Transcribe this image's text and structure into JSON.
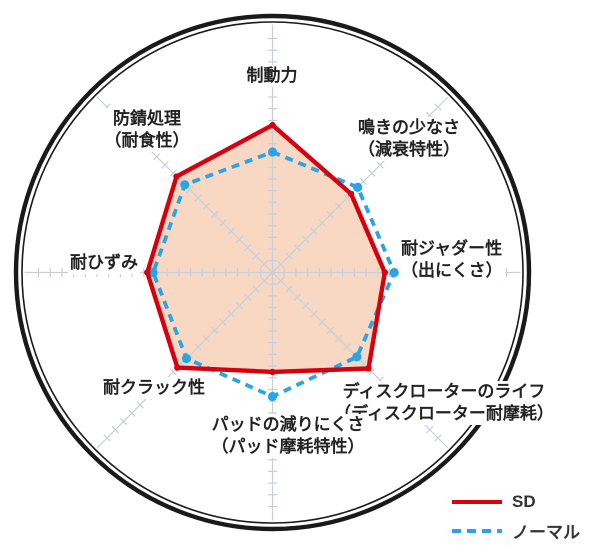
{
  "chart_data": {
    "type": "radar",
    "axes": [
      {
        "id": "braking",
        "label_lines": [
          "制動力"
        ]
      },
      {
        "id": "squeal",
        "label_lines": [
          "鳴きの少なさ",
          "（減衰特性）"
        ]
      },
      {
        "id": "judder",
        "label_lines": [
          "耐ジャダー性",
          "（出にくさ）"
        ]
      },
      {
        "id": "rotor-life",
        "label_lines": [
          "ディスクローターのライフ",
          "（ディスクローター耐摩耗）"
        ]
      },
      {
        "id": "pad-wear",
        "label_lines": [
          "パッドの減りにくさ",
          "（パッド摩耗特性）"
        ]
      },
      {
        "id": "crack",
        "label_lines": [
          "耐クラック性"
        ]
      },
      {
        "id": "strain",
        "label_lines": [
          "耐ひずみ"
        ]
      },
      {
        "id": "rust",
        "label_lines": [
          "防錆処理",
          "（耐食性）"
        ]
      }
    ],
    "series": [
      {
        "name": "SD",
        "style": "solid",
        "color": "#d7000f",
        "values": [
          12.6,
          9.5,
          9.6,
          11.6,
          8.5,
          11.5,
          10.7,
          11.6
        ]
      },
      {
        "name": "ノーマル",
        "style": "dashed",
        "color": "#2aa5e4",
        "values": [
          10.3,
          10.3,
          10.4,
          10.2,
          10.6,
          10.4,
          10.2,
          10.6
        ]
      }
    ],
    "scale": {
      "tick_unit": 1,
      "ticks_shown_per_axis": 21,
      "numeric_labels": "none"
    },
    "fill_color": "#f8d8c3",
    "grid_color": "#c9ced6",
    "rim_color": "#1a1a1a",
    "legend_position": "bottom-right"
  }
}
